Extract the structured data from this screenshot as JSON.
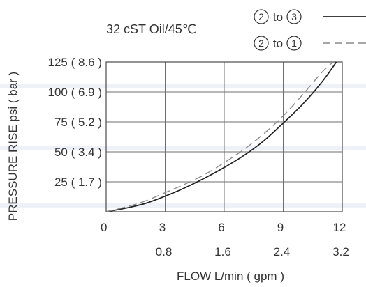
{
  "chart_data": {
    "type": "line",
    "condition": "32 cST Oil/45℃",
    "xlabel": "FLOW L/min ( gpm )",
    "ylabel": "PRESSURE RISE psi ( bar )",
    "xlim": [
      0,
      12
    ],
    "ylim": [
      0,
      125
    ],
    "x_ticks": [
      {
        "value": 0,
        "label": "0"
      },
      {
        "value": 3,
        "label": "3"
      },
      {
        "value": 6,
        "label": "6"
      },
      {
        "value": 9,
        "label": "9"
      },
      {
        "value": 12,
        "label": "12"
      }
    ],
    "x_ticks_secondary": [
      {
        "value": 3,
        "label": "0.8"
      },
      {
        "value": 6,
        "label": "1.6"
      },
      {
        "value": 9,
        "label": "2.4"
      },
      {
        "value": 12,
        "label": "3.2"
      }
    ],
    "y_ticks": [
      {
        "value": 25,
        "label": "25 ( 1.7 )"
      },
      {
        "value": 50,
        "label": "50 ( 3.4 )"
      },
      {
        "value": 75,
        "label": "75 ( 5.2 )"
      },
      {
        "value": 100,
        "label": "100 ( 6.9 )"
      },
      {
        "value": 125,
        "label": "125 ( 8.6 )"
      }
    ],
    "grid": true,
    "legend_position": "top-right",
    "series": [
      {
        "name": "2 to 3",
        "from_port": "2",
        "to_port": "3",
        "to_label": "to",
        "style": "solid",
        "x": [
          0,
          1,
          2,
          3,
          4,
          5,
          6,
          7,
          8,
          9,
          10,
          11,
          11.7
        ],
        "y": [
          0,
          3,
          7,
          13,
          20,
          28,
          37,
          47,
          59,
          74,
          90,
          109,
          125
        ]
      },
      {
        "name": "2 to 1",
        "from_port": "2",
        "to_port": "1",
        "to_label": "to",
        "style": "dashed",
        "x": [
          0,
          1,
          2,
          3,
          4,
          5,
          6,
          7,
          8,
          9,
          10,
          11,
          11.55
        ],
        "y": [
          0,
          4,
          9,
          16,
          23,
          31,
          41,
          52,
          65,
          80,
          98,
          117,
          125
        ]
      }
    ]
  }
}
